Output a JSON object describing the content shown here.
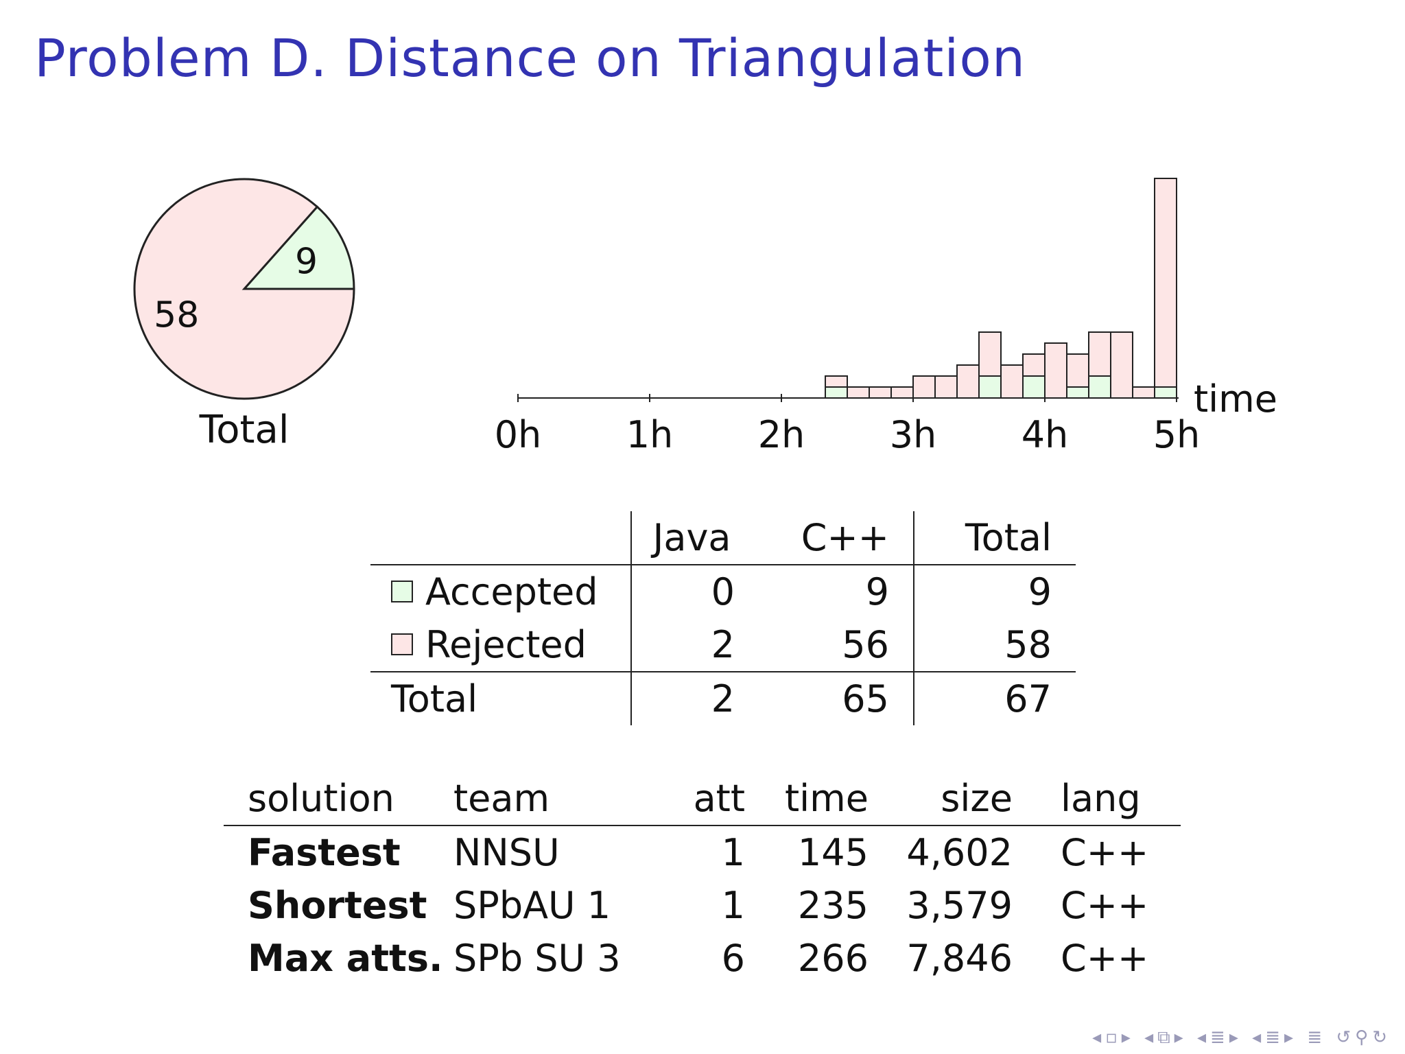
{
  "title": "Problem D. Distance on Triangulation",
  "colors": {
    "title": "#3333b2",
    "accepted": "#e6fce6",
    "rejected": "#fde6e6",
    "stroke": "#222222"
  },
  "chart_data": [
    {
      "type": "pie",
      "label": "Total",
      "slices": [
        {
          "name": "Accepted",
          "value": 9,
          "color": "#e6fce6"
        },
        {
          "name": "Rejected",
          "value": 58,
          "color": "#fde6e6"
        }
      ]
    },
    {
      "type": "bar",
      "stacked": true,
      "xlabel": "time",
      "tick_labels": [
        "0h",
        "1h",
        "2h",
        "3h",
        "4h",
        "5h"
      ],
      "xlim": [
        0,
        300
      ],
      "bin_minutes": 10,
      "bin_starts": [
        140,
        150,
        160,
        170,
        180,
        190,
        200,
        210,
        220,
        230,
        240,
        250,
        260,
        270,
        280,
        290
      ],
      "series": [
        {
          "name": "Accepted",
          "values": [
            1,
            0,
            0,
            0,
            0,
            0,
            0,
            2,
            0,
            2,
            0,
            1,
            2,
            0,
            0,
            1
          ]
        },
        {
          "name": "Rejected",
          "values": [
            1,
            1,
            1,
            1,
            2,
            2,
            3,
            4,
            3,
            2,
            5,
            3,
            4,
            6,
            1,
            19
          ]
        }
      ]
    }
  ],
  "stats_table": {
    "headers": [
      "",
      "Java",
      "C++",
      "Total"
    ],
    "rows": [
      {
        "label": "Accepted",
        "java": "0",
        "cpp": "9",
        "total": "9"
      },
      {
        "label": "Rejected",
        "java": "2",
        "cpp": "56",
        "total": "58"
      },
      {
        "label": "Total",
        "java": "2",
        "cpp": "65",
        "total": "67"
      }
    ]
  },
  "solutions_table": {
    "headers": [
      "solution",
      "team",
      "att",
      "time",
      "size",
      "lang"
    ],
    "rows": [
      {
        "solution": "Fastest",
        "team": "NNSU",
        "att": "1",
        "time": "145",
        "size": "4,602",
        "lang": "C++"
      },
      {
        "solution": "Shortest",
        "team": "SPbAU 1",
        "att": "1",
        "time": "235",
        "size": "3,579",
        "lang": "C++"
      },
      {
        "solution": "Max atts.",
        "team": "SPb SU 3",
        "att": "6",
        "time": "266",
        "size": "7,846",
        "lang": "C++"
      }
    ]
  }
}
